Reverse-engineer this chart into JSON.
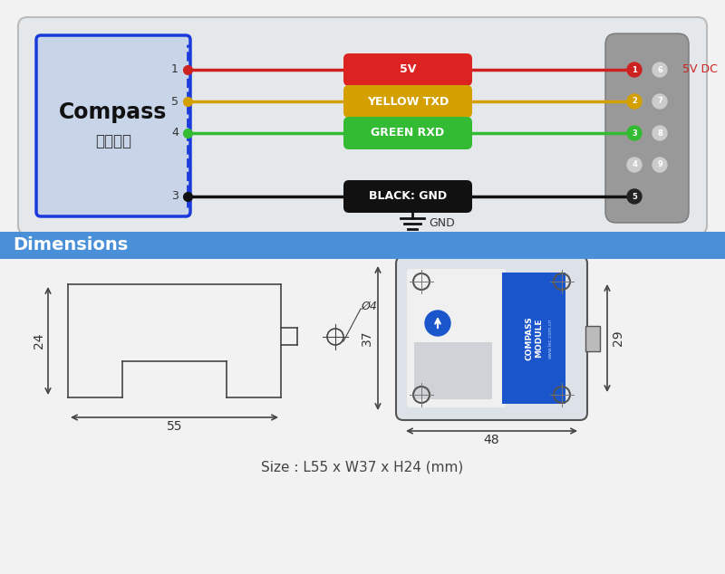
{
  "bg_color": "#f2f2f2",
  "panel_bg": "#e4e7ea",
  "panel_border": "#bbbbbb",
  "compass_box_bg": "#c8d4e8",
  "compass_box_border": "#1a3adb",
  "connector_bg": "#999999",
  "wire_colors": [
    "#cc2222",
    "#d4a000",
    "#33bb33",
    "#111111"
  ],
  "pill_colors": [
    "#dd2222",
    "#d4a000",
    "#33bb33",
    "#111111"
  ],
  "pill_labels": [
    "5V",
    "YELLOW TXD",
    "GREEN RXD",
    "BLACK: GND"
  ],
  "pill_text_colors": [
    "#ffffff",
    "#ffffff",
    "#ffffff",
    "#ffffff"
  ],
  "wire_pin_labels": [
    "1",
    "5",
    "4",
    "3"
  ],
  "label_5v_dc": "5V DC",
  "label_gnd": "GND",
  "compass_title": "Compass",
  "compass_subtitle": "电子罗盘",
  "dim_banner_color": "#4a90d9",
  "dim_banner_text": "Dimensions",
  "dim_banner_text_color": "#ffffff",
  "size_text": "Size : L55 x W37 x H24 (mm)",
  "dim_55": "55",
  "dim_24": "24",
  "dim_48": "48",
  "dim_29": "29",
  "dim_37": "37",
  "dim_hole": "Ø4"
}
